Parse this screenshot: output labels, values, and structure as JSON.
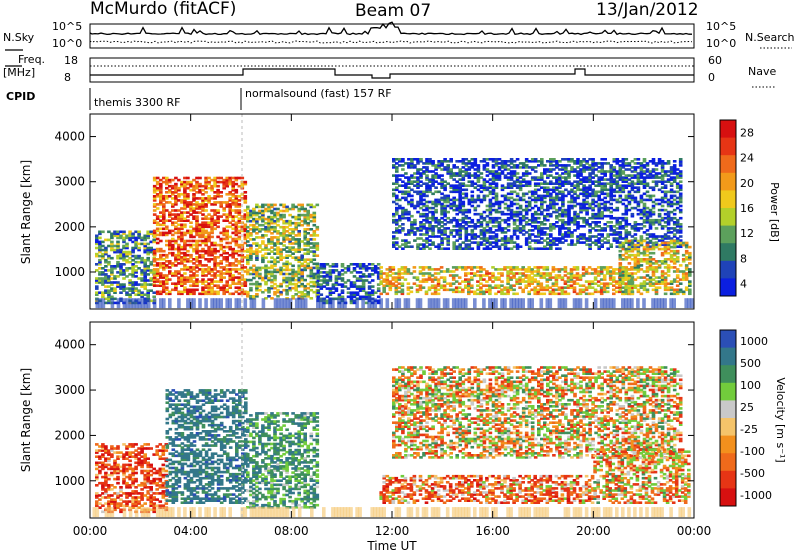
{
  "header": {
    "station": "McMurdo (fitACF)",
    "beam": "Beam 07",
    "date": "13/Jan/2012"
  },
  "top_panels": {
    "nsky_label": "N.Sky",
    "nsky_ticks": [
      "10^5",
      "10^0"
    ],
    "nsearch_label": "N.Search",
    "nsearch_ticks": [
      "10^5",
      "10^0"
    ],
    "freq_label_line1": "Freq.",
    "freq_label_line2": "[MHz]",
    "freq_ticks": [
      "18",
      "8"
    ],
    "nave_label": "Nave",
    "nave_ticks": [
      "60",
      "0"
    ],
    "cpid_label": "CPID",
    "cpid_segments": [
      {
        "name": "themis 3300 RF",
        "start_h": 0,
        "end_h": 6
      },
      {
        "name": "normalsound (fast) 157 RF",
        "start_h": 6,
        "end_h": 24
      }
    ]
  },
  "chart_data": [
    {
      "type": "heatmap",
      "panel": "power",
      "xlabel": "",
      "ylabel": "Slant Range [km]",
      "xlim": [
        0,
        24
      ],
      "ylim": [
        180,
        4500
      ],
      "yticks": [
        1000,
        2000,
        3000,
        4000
      ],
      "colorbar": {
        "label": "Power [dB]",
        "ticks": [
          4,
          8,
          12,
          16,
          20,
          24,
          28
        ],
        "colors": [
          "#0b1fe0",
          "#1f43b8",
          "#2f7a63",
          "#5ca05c",
          "#b3d02a",
          "#f0c91c",
          "#f29a1a",
          "#ef6a1b",
          "#e63515",
          "#d71010"
        ]
      },
      "echo_regions": [
        {
          "t0": 0.2,
          "t1": 2.5,
          "r0": 300,
          "r1": 1900,
          "dB": 10
        },
        {
          "t0": 2.5,
          "t1": 6.2,
          "r0": 500,
          "r1": 3100,
          "dB": 24
        },
        {
          "t0": 6.2,
          "t1": 9.0,
          "r0": 400,
          "r1": 2500,
          "dB": 14
        },
        {
          "t0": 9.0,
          "t1": 11.5,
          "r0": 300,
          "r1": 1200,
          "dB": 6
        },
        {
          "t0": 11.5,
          "t1": 21.5,
          "r0": 500,
          "r1": 1100,
          "dB": 18
        },
        {
          "t0": 12.0,
          "t1": 23.5,
          "r0": 1500,
          "r1": 3500,
          "dB": 6
        },
        {
          "t0": 21.0,
          "t1": 23.8,
          "r0": 500,
          "r1": 1700,
          "dB": 16
        }
      ]
    },
    {
      "type": "heatmap",
      "panel": "velocity",
      "xlabel": "Time UT",
      "ylabel": "Slant Range [km]",
      "xlim": [
        0,
        24
      ],
      "ylim": [
        180,
        4500
      ],
      "yticks": [
        1000,
        2000,
        3000,
        4000
      ],
      "xticks": [
        "00:00",
        "04:00",
        "08:00",
        "12:00",
        "16:00",
        "20:00",
        "00:00"
      ],
      "colorbar": {
        "label": "Velocity [m s⁻¹]",
        "ticks": [
          "1000",
          "500",
          "100",
          "25",
          "-25",
          "-100",
          "-500",
          "-1000"
        ],
        "colors": [
          "#2b4fb6",
          "#33778a",
          "#3f8f5c",
          "#72cc3c",
          "#c9c9c9",
          "#f5c46a",
          "#f3901d",
          "#ef6a1b",
          "#e63515",
          "#d71010"
        ]
      },
      "echo_regions": [
        {
          "t0": 0.2,
          "t1": 3.0,
          "r0": 300,
          "r1": 1800,
          "v": -300
        },
        {
          "t0": 3.0,
          "t1": 6.2,
          "r0": 500,
          "r1": 3000,
          "v": 700
        },
        {
          "t0": 6.2,
          "t1": 9.0,
          "r0": 400,
          "r1": 2500,
          "v": 400
        },
        {
          "t0": 11.5,
          "t1": 20.0,
          "r0": 500,
          "r1": 1100,
          "v": -200
        },
        {
          "t0": 12.0,
          "t1": 23.5,
          "r0": 1500,
          "r1": 3500,
          "v": 0
        },
        {
          "t0": 20.0,
          "t1": 23.8,
          "r0": 500,
          "r1": 1700,
          "v": -60
        }
      ]
    }
  ]
}
